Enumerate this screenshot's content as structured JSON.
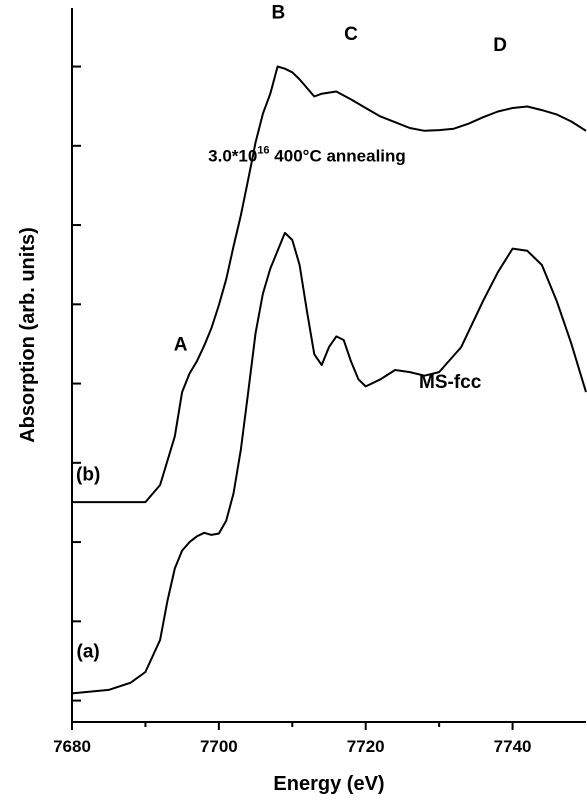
{
  "chart_data": {
    "type": "line",
    "title": "",
    "xlabel": "Energy (eV)",
    "ylabel": "Absorption (arb. units)",
    "xlim": [
      7680,
      7750
    ],
    "ylim": [
      0,
      1
    ],
    "x_ticks": [
      7680,
      7700,
      7720,
      7740
    ],
    "x_tick_labels": [
      "7680",
      "7700",
      "7720",
      "7740"
    ],
    "y_ticks": [
      0.03,
      0.141,
      0.252,
      0.363,
      0.474,
      0.585,
      0.696,
      0.807,
      0.918
    ],
    "grid": false,
    "legend": "none",
    "series": [
      {
        "name": "(b)",
        "x": [
          7680,
          7690,
          7692,
          7694,
          7695,
          7696,
          7697,
          7698,
          7699,
          7700,
          7701,
          7702,
          7703,
          7704,
          7705,
          7706,
          7707,
          7708,
          7709,
          7710,
          7711,
          7712,
          7713,
          7714,
          7716,
          7718,
          7720,
          7722,
          7724,
          7726,
          7728,
          7730,
          7732,
          7734,
          7736,
          7738,
          7740,
          7742,
          7744,
          7746,
          7748,
          7750
        ],
        "values": [
          0.308,
          0.308,
          0.332,
          0.4,
          0.462,
          0.488,
          0.505,
          0.527,
          0.552,
          0.584,
          0.62,
          0.666,
          0.71,
          0.76,
          0.812,
          0.852,
          0.88,
          0.918,
          0.915,
          0.91,
          0.9,
          0.888,
          0.876,
          0.88,
          0.883,
          0.872,
          0.86,
          0.848,
          0.84,
          0.832,
          0.828,
          0.829,
          0.831,
          0.838,
          0.847,
          0.855,
          0.86,
          0.862,
          0.857,
          0.851,
          0.841,
          0.828
        ]
      },
      {
        "name": "(a)",
        "x": [
          7680,
          7685,
          7688,
          7690,
          7692,
          7693,
          7694,
          7695,
          7696,
          7697,
          7698,
          7699,
          7700,
          7701,
          7702,
          7703,
          7704,
          7705,
          7706,
          7707,
          7708,
          7709,
          7710,
          7711,
          7712,
          7713,
          7714,
          7715,
          7716,
          7717,
          7718,
          7719,
          7720,
          7721,
          7722,
          7724,
          7726,
          7728,
          7730,
          7733,
          7736,
          7738,
          7740,
          7742,
          7744,
          7746,
          7748,
          7750
        ],
        "values": [
          0.04,
          0.045,
          0.055,
          0.07,
          0.115,
          0.17,
          0.215,
          0.24,
          0.252,
          0.26,
          0.265,
          0.262,
          0.264,
          0.282,
          0.32,
          0.382,
          0.462,
          0.545,
          0.6,
          0.635,
          0.66,
          0.685,
          0.675,
          0.64,
          0.575,
          0.515,
          0.5,
          0.525,
          0.54,
          0.535,
          0.505,
          0.48,
          0.47,
          0.475,
          0.48,
          0.493,
          0.49,
          0.485,
          0.49,
          0.525,
          0.59,
          0.63,
          0.663,
          0.66,
          0.64,
          0.59,
          0.53,
          0.462
        ]
      }
    ],
    "annotations": [
      {
        "text": "A",
        "x": 7694.8,
        "y": 0.52
      },
      {
        "text": "B",
        "x": 7708.1,
        "y": 0.985
      },
      {
        "text": "C",
        "x": 7718,
        "y": 0.955
      },
      {
        "text": "D",
        "x": 7738.3,
        "y": 0.94
      },
      {
        "text": "3.0*10",
        "sup": "16",
        "rest": " 400°C annealing",
        "x": 7712,
        "y": 0.785
      },
      {
        "text": "MS-fcc",
        "x": 7731.5,
        "y": 0.468
      },
      {
        "text": "(b)",
        "x": 7682.2,
        "y": 0.338
      },
      {
        "text": "(a)",
        "x": 7682.2,
        "y": 0.09
      }
    ]
  }
}
